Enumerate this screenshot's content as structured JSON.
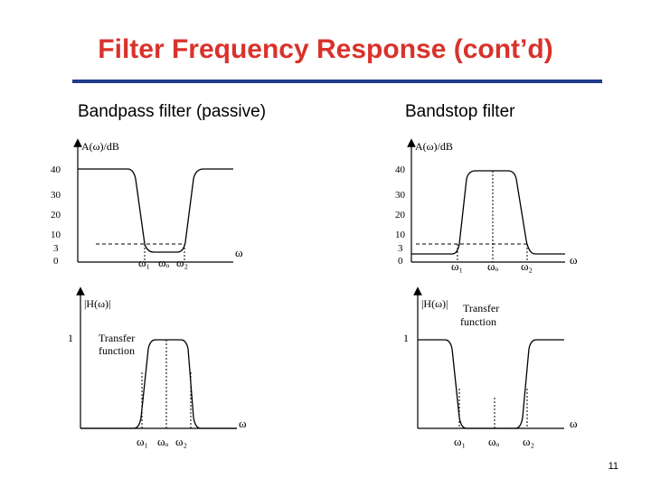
{
  "title": "Filter Frequency Response (cont’d)",
  "accent_color": "#d9322b",
  "rule_color": "#1f3c8c",
  "page_number": "11",
  "bandpass": {
    "heading": "Bandpass filter (passive)",
    "top_plot": {
      "ylabel": "A(ω)/dB",
      "xlabel": "ω",
      "ticks": [
        "40",
        "30",
        "20",
        "10",
        "3",
        "0"
      ],
      "omega1": "ω₁",
      "omega0": "ωₒ",
      "omega2": "ω₂"
    },
    "bottom_plot": {
      "ylabel": "|H(ω)|",
      "xlabel": "ω",
      "tick_one": "1",
      "caption_line1": "Transfer",
      "caption_line2": "function",
      "omega1": "ω₁",
      "omega0": "ωₒ",
      "omega2": "ω₂"
    }
  },
  "bandstop": {
    "heading": "Bandstop filter",
    "top_plot": {
      "ylabel": "A(ω)/dB",
      "xlabel": "ω",
      "ticks": [
        "40",
        "30",
        "20",
        "10",
        "3",
        "0"
      ],
      "omega1": "ω₁",
      "omega0": "ωₒ",
      "omega2": "ω₂"
    },
    "bottom_plot": {
      "ylabel": "|H(ω)|",
      "xlabel": "ω",
      "tick_one": "1",
      "caption_line1": "Transfer",
      "caption_line2": "function",
      "omega1": "ω₁",
      "omega0": "ωₒ",
      "omega2": "ω₂"
    }
  }
}
